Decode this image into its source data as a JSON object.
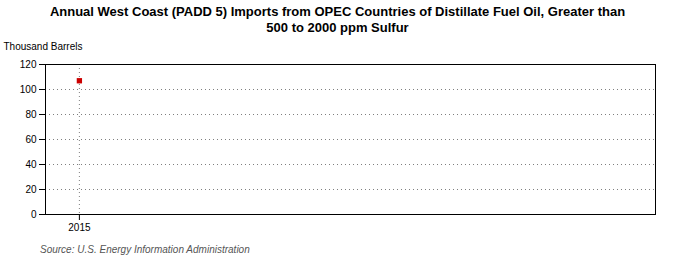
{
  "chart_data": {
    "type": "scatter",
    "title": "Annual West Coast (PADD 5) Imports from OPEC Countries of Distillate Fuel Oil, Greater than\n500 to 2000 ppm Sulfur",
    "ylabel": "Thousand Barrels",
    "source": "Source: U.S. Energy Information Administration",
    "x": [
      2015
    ],
    "values": [
      107
    ],
    "color": "#cc0000",
    "marker": "square",
    "xlim": [
      2014.5,
      2023.5
    ],
    "xticks": [
      2015
    ],
    "ylim": [
      0,
      120
    ],
    "yticks": [
      0,
      20,
      40,
      60,
      80,
      100,
      120
    ],
    "grid": true
  }
}
